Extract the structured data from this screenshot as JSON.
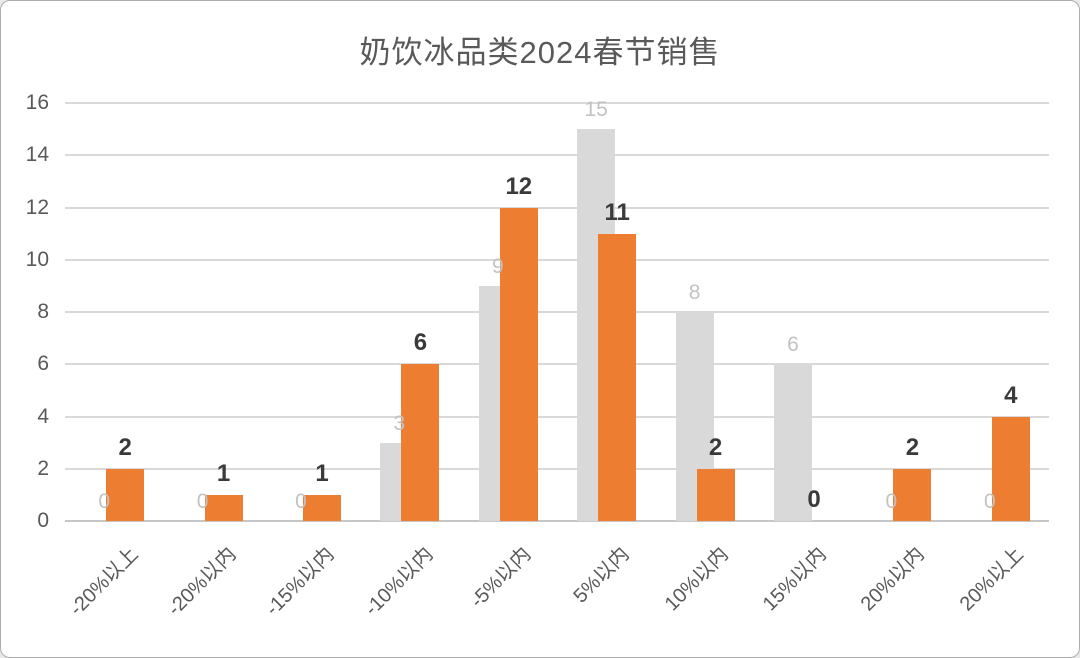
{
  "chart_data": {
    "type": "bar",
    "title": "奶饮冰品类2024春节销售",
    "categories": [
      "-20%以上",
      "-20%以内",
      "-15%以内",
      "-10%以内",
      "-5%以内",
      "5%以内",
      "10%以内",
      "15%以内",
      "20%以内",
      "20%以上"
    ],
    "series": [
      {
        "name": "gray-series",
        "values": [
          0,
          0,
          0,
          3,
          9,
          15,
          8,
          6,
          0,
          0
        ],
        "bar_color": "#d9d9d9",
        "label_color": "#c2c2c2"
      },
      {
        "name": "orange-series",
        "values": [
          2,
          1,
          1,
          6,
          12,
          11,
          2,
          0,
          2,
          4
        ],
        "bar_color": "#ed7d31",
        "label_color": "#3a3a3a"
      }
    ],
    "xlabel": "",
    "ylabel": "",
    "ylim": [
      0,
      16
    ],
    "ytick_step": 2,
    "yticks": [
      "0",
      "2",
      "4",
      "6",
      "8",
      "10",
      "12",
      "14",
      "16"
    ],
    "grid": "horizontal",
    "legend": "none",
    "bar_layout": "overlapped",
    "colors": {
      "title_text": "#595959",
      "axis_text": "#595959",
      "gridline": "#d9d9d9",
      "frame_border": "#adadad",
      "background": "#ffffff"
    }
  }
}
